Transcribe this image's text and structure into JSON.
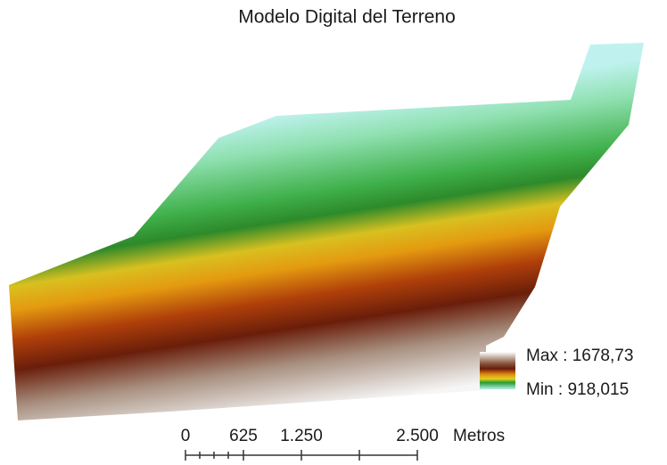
{
  "title": "Modelo Digital del Terreno",
  "legend": {
    "max": "Max : 1678,73",
    "min": "Min : 918,015"
  },
  "scale_bar": {
    "labels": [
      "0",
      "625",
      "1.250",
      "2.500"
    ],
    "unit": "Metros"
  }
}
